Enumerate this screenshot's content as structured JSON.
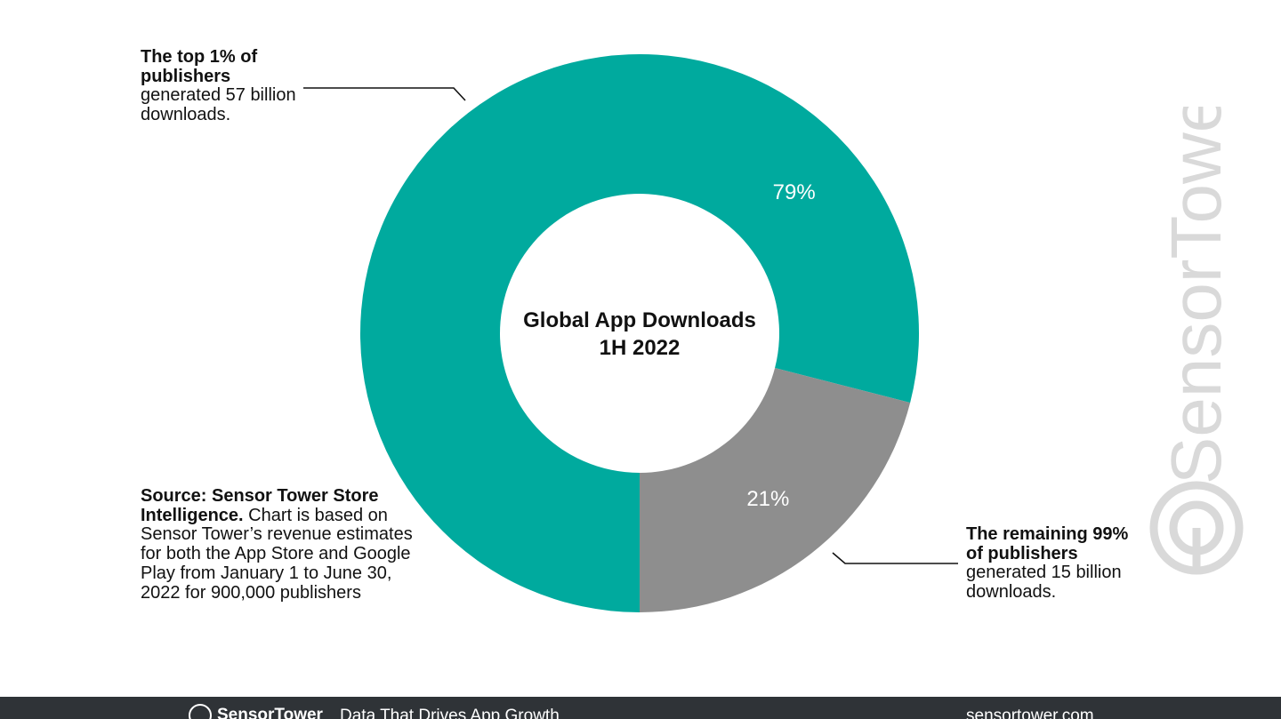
{
  "chart_data": {
    "type": "pie",
    "title": "Global App Downloads\n1H 2022",
    "title_lines": [
      "Global App Downloads",
      "1H 2022"
    ],
    "categories": [
      "The top 1% of publishers",
      "The remaining 99% of publishers"
    ],
    "values": [
      79,
      21
    ],
    "data_labels": [
      "79%",
      "21%"
    ],
    "colors": [
      "#00aa9e",
      "#8e8e8e"
    ],
    "donut": true
  },
  "annotations": {
    "top": {
      "bold": "The top 1% of publishers",
      "text": "generated 57 billion downloads."
    },
    "bottom": {
      "bold": "The remaining 99% of publishers",
      "text": "generated 15 billion downloads."
    }
  },
  "source": {
    "bold": "Source: Sensor Tower Store Intelligence.",
    "text": "Chart is based on Sensor Tower’s revenue estimates for both the App Store and Google Play from January 1 to June 30, 2022 for 900,000 publishers"
  },
  "watermark": {
    "text": "SensorTower",
    "icon": "sensor-tower-logo-icon",
    "color": "#d9d9d9"
  },
  "footer": {
    "brand": "SensorTower",
    "tagline": "Data That Drives App Growth",
    "site": "sensortower.com",
    "background": "#2f3337"
  }
}
